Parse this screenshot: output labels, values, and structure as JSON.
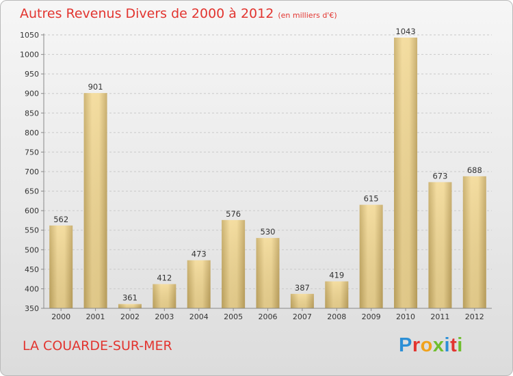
{
  "chart_data": {
    "type": "bar",
    "title": "Autres Revenus Divers de 2000 à 2012",
    "unit": "(en milliers d'€)",
    "subtitle": "LA COUARDE-SUR-MER",
    "categories": [
      "2000",
      "2001",
      "2002",
      "2003",
      "2004",
      "2005",
      "2006",
      "2007",
      "2008",
      "2009",
      "2010",
      "2011",
      "2012"
    ],
    "values": [
      562,
      901,
      361,
      412,
      473,
      576,
      530,
      387,
      419,
      615,
      1043,
      673,
      688
    ],
    "ylim": [
      350,
      1050
    ],
    "yticks": [
      350,
      400,
      450,
      500,
      550,
      600,
      650,
      700,
      750,
      800,
      850,
      900,
      950,
      1000,
      1050
    ],
    "grid": true,
    "legend": "none",
    "colors": {
      "bar_light": "#f5dc98",
      "bar_dark": "#c8ad66",
      "grid": "#c9c9c9",
      "title": "#e2342f"
    }
  },
  "logo": {
    "text": "Proxiti",
    "letters": [
      "P",
      "r",
      "o",
      "x",
      "i",
      "t",
      "i"
    ]
  }
}
